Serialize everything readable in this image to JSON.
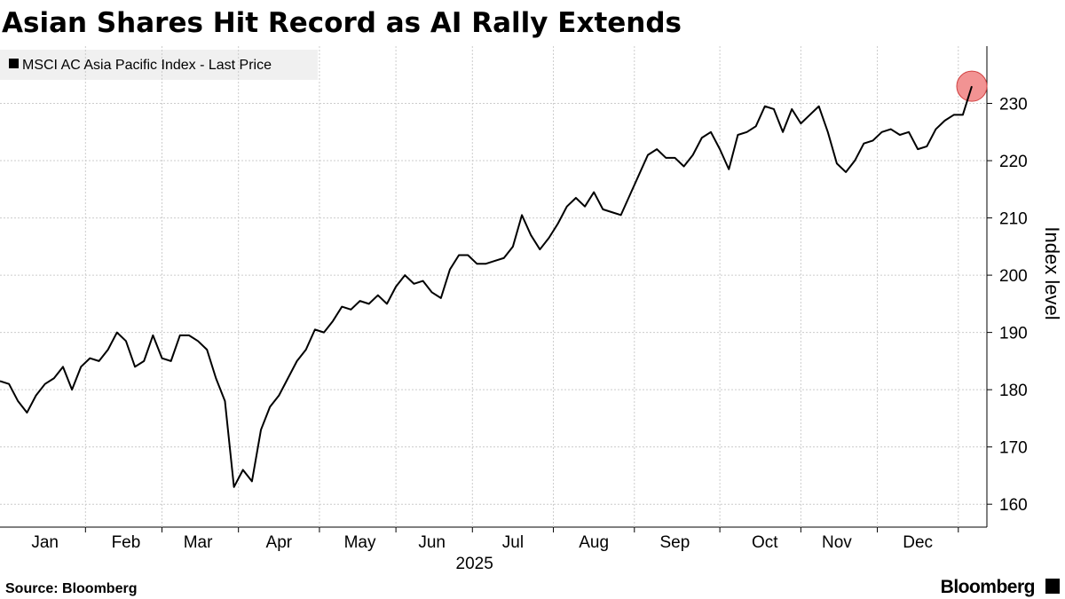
{
  "chart_data": {
    "type": "line",
    "title": "Asian Shares Hit Record as AI Rally Extends",
    "xlabel": "2025",
    "ylabel": "Index level",
    "source": "Source: Bloomberg",
    "brand": "Bloomberg",
    "categories": [
      null,
      null,
      null,
      null,
      null,
      "Jan",
      null,
      null,
      null,
      null,
      null,
      null,
      null,
      null,
      "Feb",
      null,
      null,
      null,
      null,
      null,
      null,
      null,
      "Mar",
      null,
      null,
      null,
      null,
      null,
      null,
      null,
      null,
      "Apr",
      null,
      null,
      null,
      null,
      null,
      null,
      null,
      null,
      "May",
      null,
      null,
      null,
      null,
      null,
      null,
      null,
      "Jun",
      null,
      null,
      null,
      null,
      null,
      null,
      null,
      null,
      "Jul",
      null,
      null,
      null,
      null,
      null,
      null,
      null,
      null,
      "Aug",
      null,
      null,
      null,
      null,
      null,
      null,
      null,
      null,
      "Sep",
      null,
      null,
      null,
      null,
      null,
      null,
      null,
      null,
      null,
      "Oct",
      null,
      null,
      null,
      null,
      null,
      null,
      null,
      "Nov",
      null,
      null,
      null,
      null,
      null,
      null,
      null,
      null,
      "Dec",
      null,
      null,
      null,
      null,
      null,
      null
    ],
    "series": [
      {
        "name": "MSCI AC Asia Pacific Index - Last Price",
        "color": "#000000",
        "values": [
          181.5,
          181,
          178,
          176,
          179,
          181,
          182,
          184,
          180,
          184,
          185.5,
          185,
          187,
          190,
          188.5,
          184,
          185,
          189.5,
          185.5,
          185,
          189.5,
          189.5,
          188.5,
          187,
          182,
          178,
          163,
          166,
          164,
          173,
          177,
          179,
          182,
          185,
          187,
          190.5,
          190,
          192,
          194.5,
          194,
          195.5,
          195,
          196.5,
          195,
          198,
          200,
          198.5,
          199,
          197,
          196,
          201,
          203.5,
          203.5,
          202,
          202,
          202.5,
          203,
          205,
          210.5,
          207,
          204.5,
          206.5,
          209,
          212,
          213.5,
          212,
          214.5,
          211.5,
          211,
          210.5,
          214,
          217.5,
          221,
          222,
          220.5,
          220.5,
          219,
          221,
          224,
          225,
          222,
          218.5,
          224.5,
          225,
          226,
          229.5,
          229,
          225,
          229,
          226.5,
          228,
          229.5,
          225,
          219.5,
          218,
          220,
          223,
          223.5,
          225,
          225.5,
          224.5,
          225,
          222,
          222.5,
          225.5,
          227,
          228,
          228,
          233
        ]
      }
    ],
    "ylim": [
      156,
      240
    ],
    "yticks": [
      160,
      170,
      180,
      190,
      200,
      210,
      220,
      230
    ],
    "grid": true,
    "highlight_color": "#f08080"
  }
}
